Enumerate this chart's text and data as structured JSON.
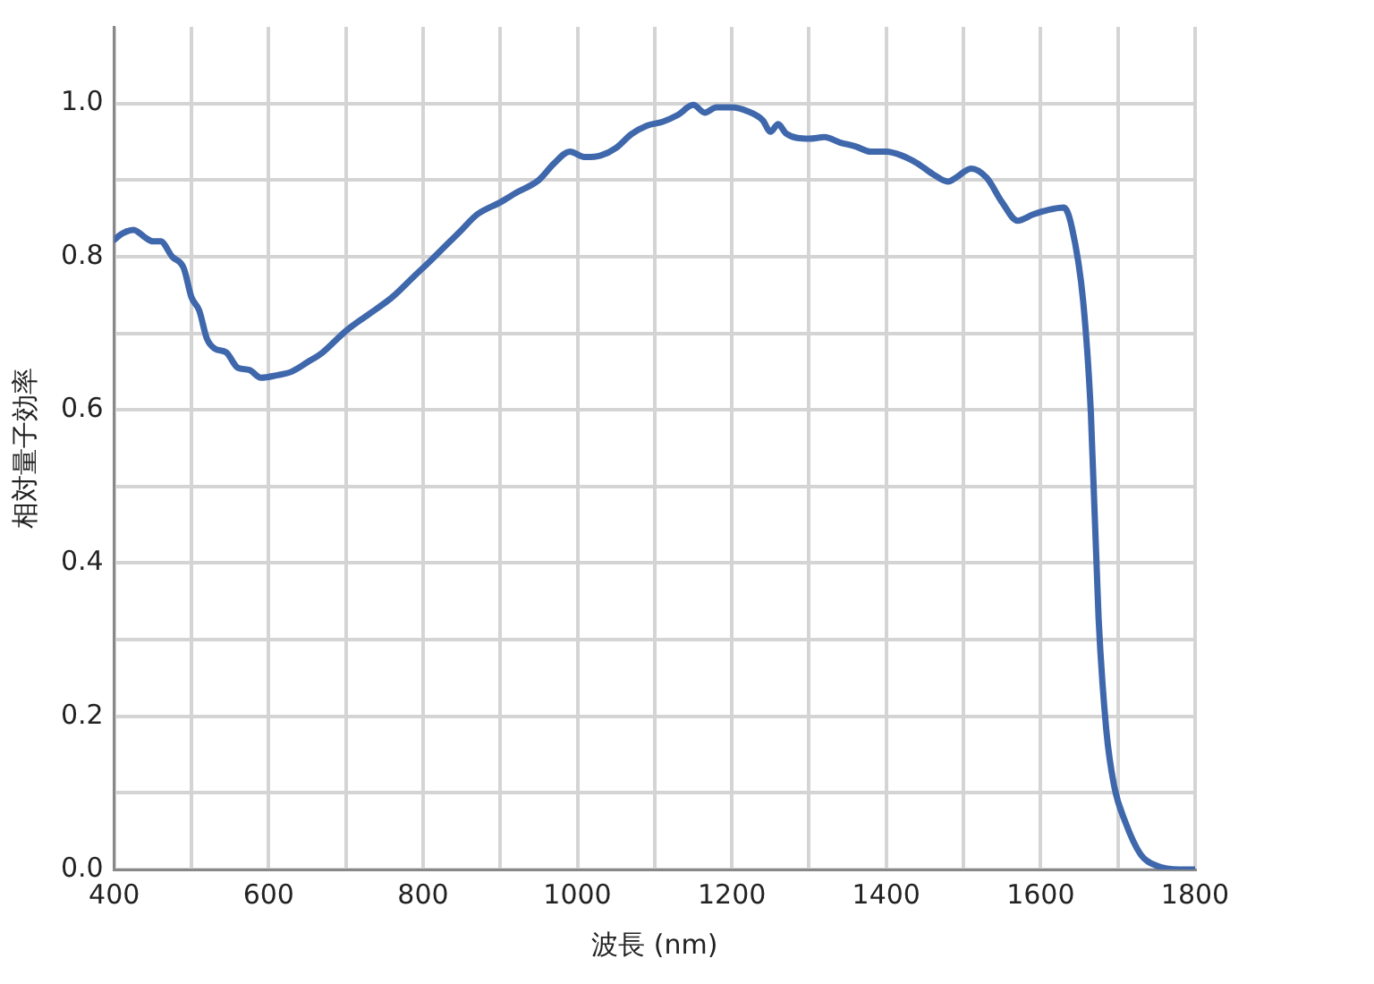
{
  "chart_data": {
    "type": "line",
    "xlabel": "波長 (nm)",
    "ylabel": "相対量子効率",
    "x": [
      400,
      410,
      425,
      440,
      450,
      460,
      475,
      490,
      500,
      510,
      520,
      530,
      545,
      560,
      575,
      590,
      610,
      630,
      650,
      670,
      700,
      730,
      760,
      790,
      810,
      830,
      850,
      870,
      900,
      920,
      950,
      970,
      990,
      1010,
      1030,
      1050,
      1070,
      1090,
      1110,
      1130,
      1150,
      1165,
      1180,
      1200,
      1220,
      1240,
      1250,
      1260,
      1270,
      1300,
      1320,
      1340,
      1360,
      1380,
      1400,
      1420,
      1440,
      1460,
      1480,
      1490,
      1510,
      1530,
      1550,
      1570,
      1590,
      1610,
      1630,
      1640,
      1655,
      1665,
      1675,
      1685,
      1695,
      1710,
      1730,
      1750,
      1780,
      1800
    ],
    "series": [
      {
        "color": "#3f67ab",
        "values": [
          0.822,
          0.83,
          0.835,
          0.825,
          0.82,
          0.82,
          0.8,
          0.785,
          0.747,
          0.73,
          0.693,
          0.68,
          0.675,
          0.655,
          0.652,
          0.642,
          0.645,
          0.65,
          0.662,
          0.675,
          0.703,
          0.725,
          0.747,
          0.776,
          0.795,
          0.815,
          0.835,
          0.855,
          0.871,
          0.883,
          0.9,
          0.922,
          0.937,
          0.93,
          0.932,
          0.942,
          0.96,
          0.971,
          0.976,
          0.985,
          0.998,
          0.988,
          0.995,
          0.995,
          0.99,
          0.978,
          0.963,
          0.973,
          0.961,
          0.954,
          0.956,
          0.949,
          0.944,
          0.937,
          0.937,
          0.932,
          0.922,
          0.908,
          0.898,
          0.903,
          0.915,
          0.903,
          0.871,
          0.847,
          0.855,
          0.861,
          0.864,
          0.84,
          0.742,
          0.596,
          0.328,
          0.182,
          0.11,
          0.061,
          0.019,
          0.005,
          0,
          0
        ]
      }
    ],
    "xlim": [
      400,
      1800
    ],
    "xticks": [
      400,
      {
        "value": 500,
        "label": null
      },
      600,
      {
        "value": 700,
        "label": null
      },
      800,
      {
        "value": 900,
        "label": null
      },
      1000,
      {
        "value": 1100,
        "label": null
      },
      1200,
      {
        "value": 1300,
        "label": null
      },
      1400,
      {
        "value": 1500,
        "label": null
      },
      1600,
      {
        "value": 1700,
        "label": null
      },
      1800
    ],
    "ylim": [
      0,
      1.1
    ],
    "yticks": [
      {
        "value": 0,
        "label": "0.0"
      },
      {
        "value": 0.1,
        "label": null
      },
      0.2,
      {
        "value": 0.3,
        "label": null
      },
      0.4,
      {
        "value": 0.5,
        "label": null
      },
      0.6,
      {
        "value": 0.7,
        "label": null
      },
      0.8,
      {
        "value": 0.9,
        "label": null
      },
      {
        "value": 1,
        "label": "1.0"
      }
    ],
    "grid": true,
    "legend": false,
    "marker": "none",
    "line_style": "solid"
  }
}
